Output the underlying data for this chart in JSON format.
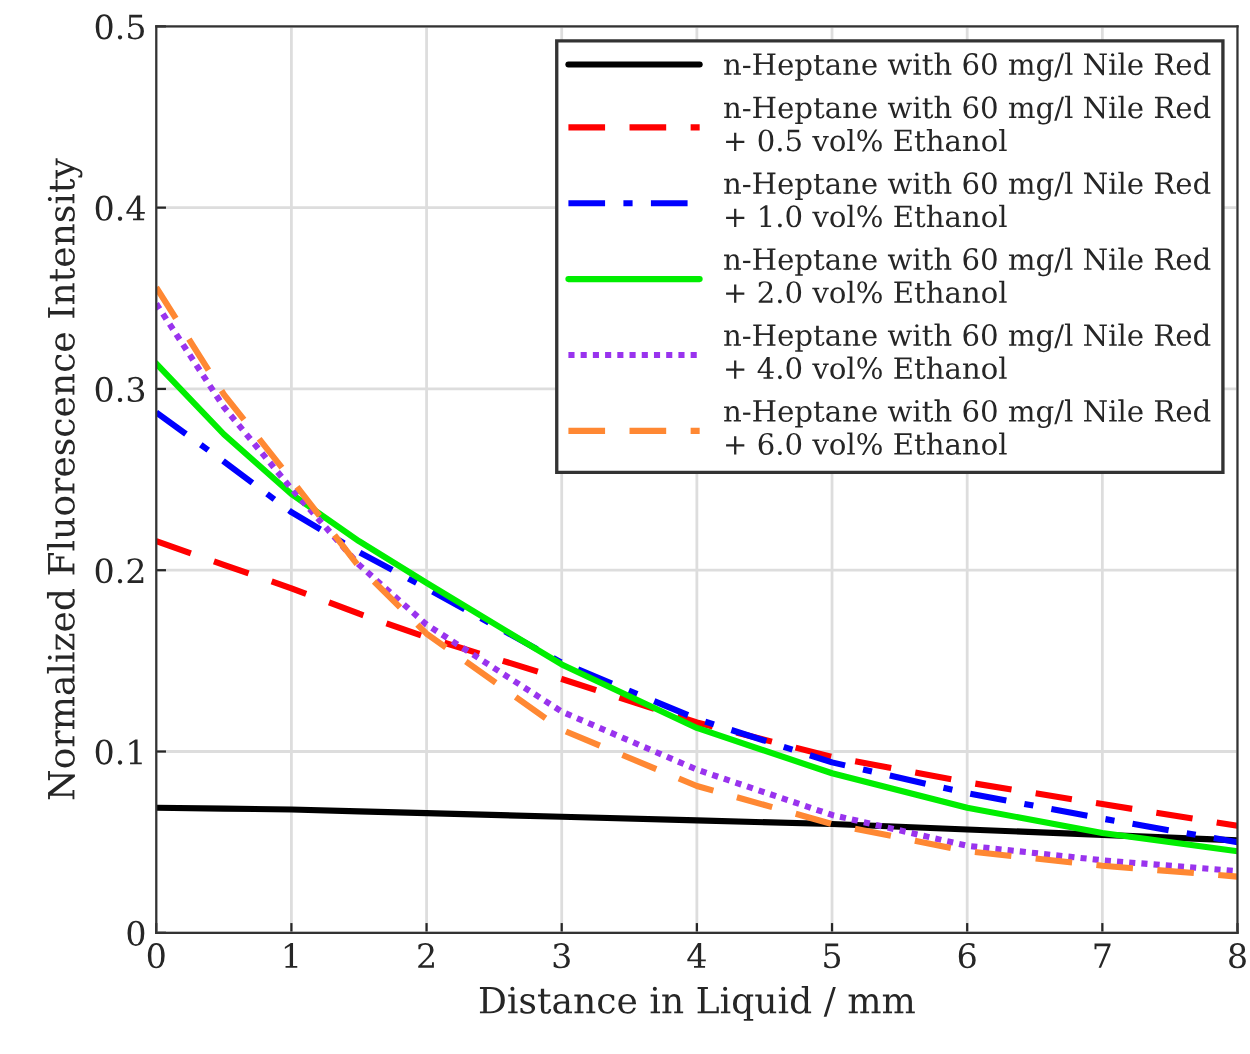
{
  "chart_data": {
    "type": "line",
    "xlabel": "Distance in Liquid / mm",
    "ylabel": "Normalized Fluorescence Intensity",
    "x": [
      0,
      0.5,
      1,
      1.5,
      2,
      3,
      4,
      5,
      6,
      7,
      8
    ],
    "series": [
      {
        "name": "n-Heptane with 60 mg/l Nile Red",
        "color": "#000000",
        "line_style": "solid",
        "values": [
          0.069,
          0.0685,
          0.068,
          0.067,
          0.066,
          0.064,
          0.062,
          0.06,
          0.057,
          0.054,
          0.051
        ]
      },
      {
        "name": "n-Heptane with 60 mg/l Nile Red\n+ 0.5 vol% Ethanol",
        "color": "#ff0000",
        "line_style": "dashed",
        "values": [
          0.216,
          0.203,
          0.19,
          0.176,
          0.163,
          0.14,
          0.116,
          0.097,
          0.083,
          0.071,
          0.059
        ]
      },
      {
        "name": "n-Heptane with 60 mg/l Nile Red\n+ 1.0 vol% Ethanol",
        "color": "#0000ff",
        "line_style": "dashdot",
        "values": [
          0.287,
          0.26,
          0.232,
          0.21,
          0.19,
          0.149,
          0.118,
          0.094,
          0.077,
          0.063,
          0.05
        ]
      },
      {
        "name": "n-Heptane with 60 mg/l Nile Red\n+ 2.0 vol% Ethanol",
        "color": "#00ee00",
        "line_style": "solid",
        "values": [
          0.314,
          0.275,
          0.242,
          0.216,
          0.193,
          0.148,
          0.113,
          0.088,
          0.069,
          0.055,
          0.045
        ]
      },
      {
        "name": "n-Heptane with 60 mg/l Nile Red\n+ 4.0 vol% Ethanol",
        "color": "#9933ee",
        "line_style": "dotted",
        "values": [
          0.347,
          0.29,
          0.245,
          0.203,
          0.17,
          0.122,
          0.09,
          0.065,
          0.048,
          0.04,
          0.034
        ]
      },
      {
        "name": "n-Heptane with 60 mg/l Nile Red\n+ 6.0 vol% Ethanol",
        "color": "#ff8833",
        "line_style": "dashed",
        "values": [
          0.356,
          0.297,
          0.25,
          0.202,
          0.165,
          0.112,
          0.081,
          0.06,
          0.045,
          0.037,
          0.031
        ]
      }
    ],
    "xlim": [
      0,
      8
    ],
    "xticks": [
      0,
      1,
      2,
      3,
      4,
      5,
      6,
      7,
      8
    ],
    "ylim": [
      0,
      0.5
    ],
    "yticks": [
      0,
      0.1,
      0.2,
      0.3,
      0.4,
      0.5
    ],
    "grid": true,
    "legend": "top right"
  }
}
